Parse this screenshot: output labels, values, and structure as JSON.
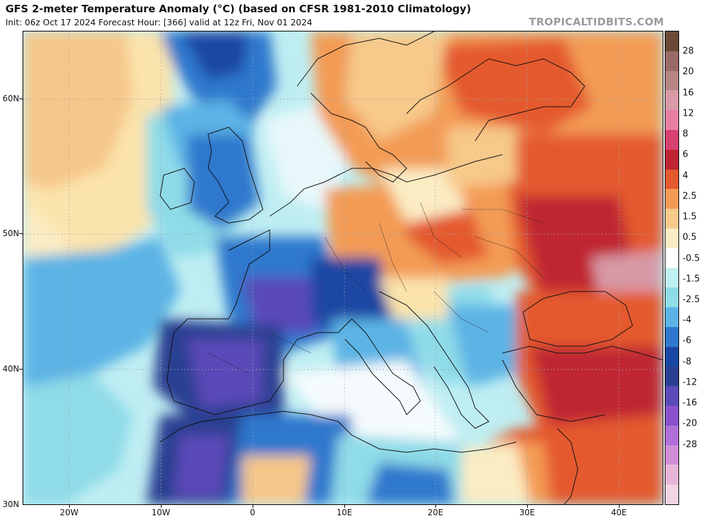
{
  "header": {
    "title": "GFS 2-meter Temperature Anomaly (°C) (based on CFSR 1981-2010 Climatology)",
    "subtitle": "Init: 06z Oct 17 2024   Forecast Hour: [366]   valid at 12z Fri, Nov 01 2024",
    "brand": "TROPICALTIDBITS.COM"
  },
  "map": {
    "lat_labels": [
      "60N",
      "50N",
      "40N",
      "30N"
    ],
    "lon_labels": [
      "20W",
      "10W",
      "0",
      "10E",
      "20E",
      "30E",
      "40E"
    ]
  },
  "colorbar": {
    "labels": [
      "28",
      "20",
      "16",
      "12",
      "8",
      "6",
      "4",
      "2.5",
      "1.5",
      "0.5",
      "-0.5",
      "-1.5",
      "-2.5",
      "-4",
      "-6",
      "-8",
      "-12",
      "-16",
      "-20",
      "-28"
    ],
    "colors": [
      "#6b4a37",
      "#9a6a66",
      "#b78585",
      "#d79aa6",
      "#e97ea5",
      "#d6416f",
      "#c02533",
      "#e45a2f",
      "#f39b55",
      "#f7c98a",
      "#fbecc3",
      "#ffffff",
      "#bff1f2",
      "#8fdbe8",
      "#5bb4e5",
      "#2f78cd",
      "#1a47a3",
      "#2a3f92",
      "#5a4ab8",
      "#8b52cf",
      "#b070d8",
      "#d08fd8",
      "#e8b4d8",
      "#f2d3e6"
    ]
  }
}
